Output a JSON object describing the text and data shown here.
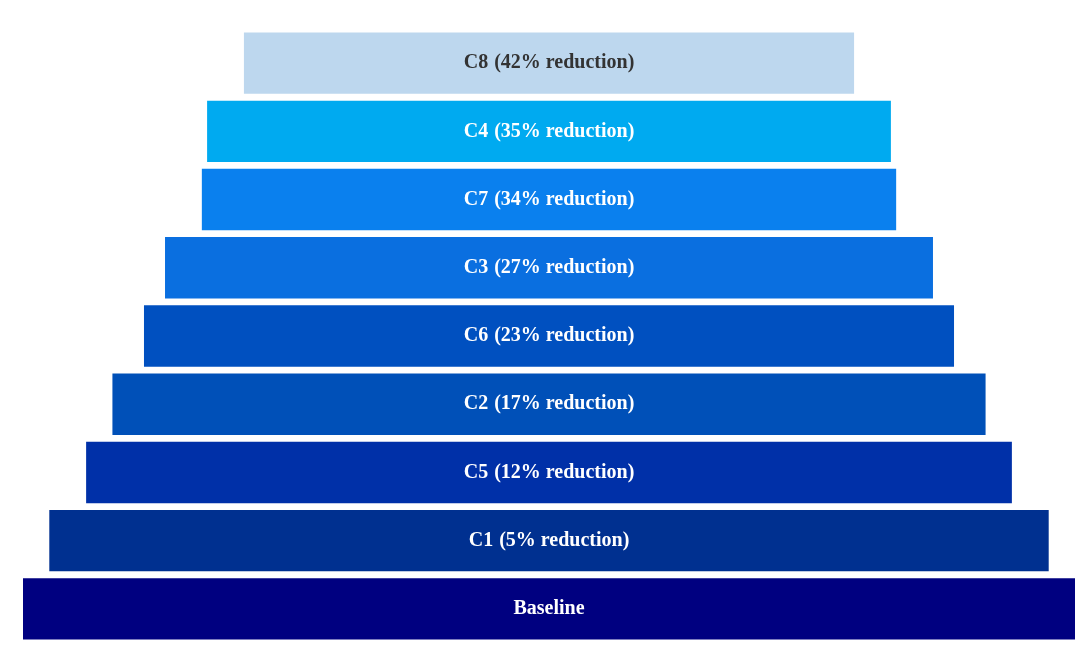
{
  "chart_data": {
    "type": "other",
    "categories": [
      "C8",
      "C4",
      "C7",
      "C3",
      "C6",
      "C2",
      "C5",
      "C1",
      "Baseline"
    ],
    "values": [
      42,
      35,
      34,
      27,
      23,
      17,
      12,
      5,
      null
    ],
    "value_labels": [
      "(42% reduction)",
      "(35% reduction)",
      "(34% reduction)",
      "(27% reduction)",
      "(23% reduction)",
      "(17% reduction)",
      "(12% reduction)",
      "(5% reduction)",
      null
    ],
    "colors": [
      "#bdd7ee",
      "#00aaf0",
      "#0a80ee",
      "#0a6fe0",
      "#0050c0",
      "#0050b8",
      "#0030a8",
      "#003090",
      "#000080"
    ]
  }
}
